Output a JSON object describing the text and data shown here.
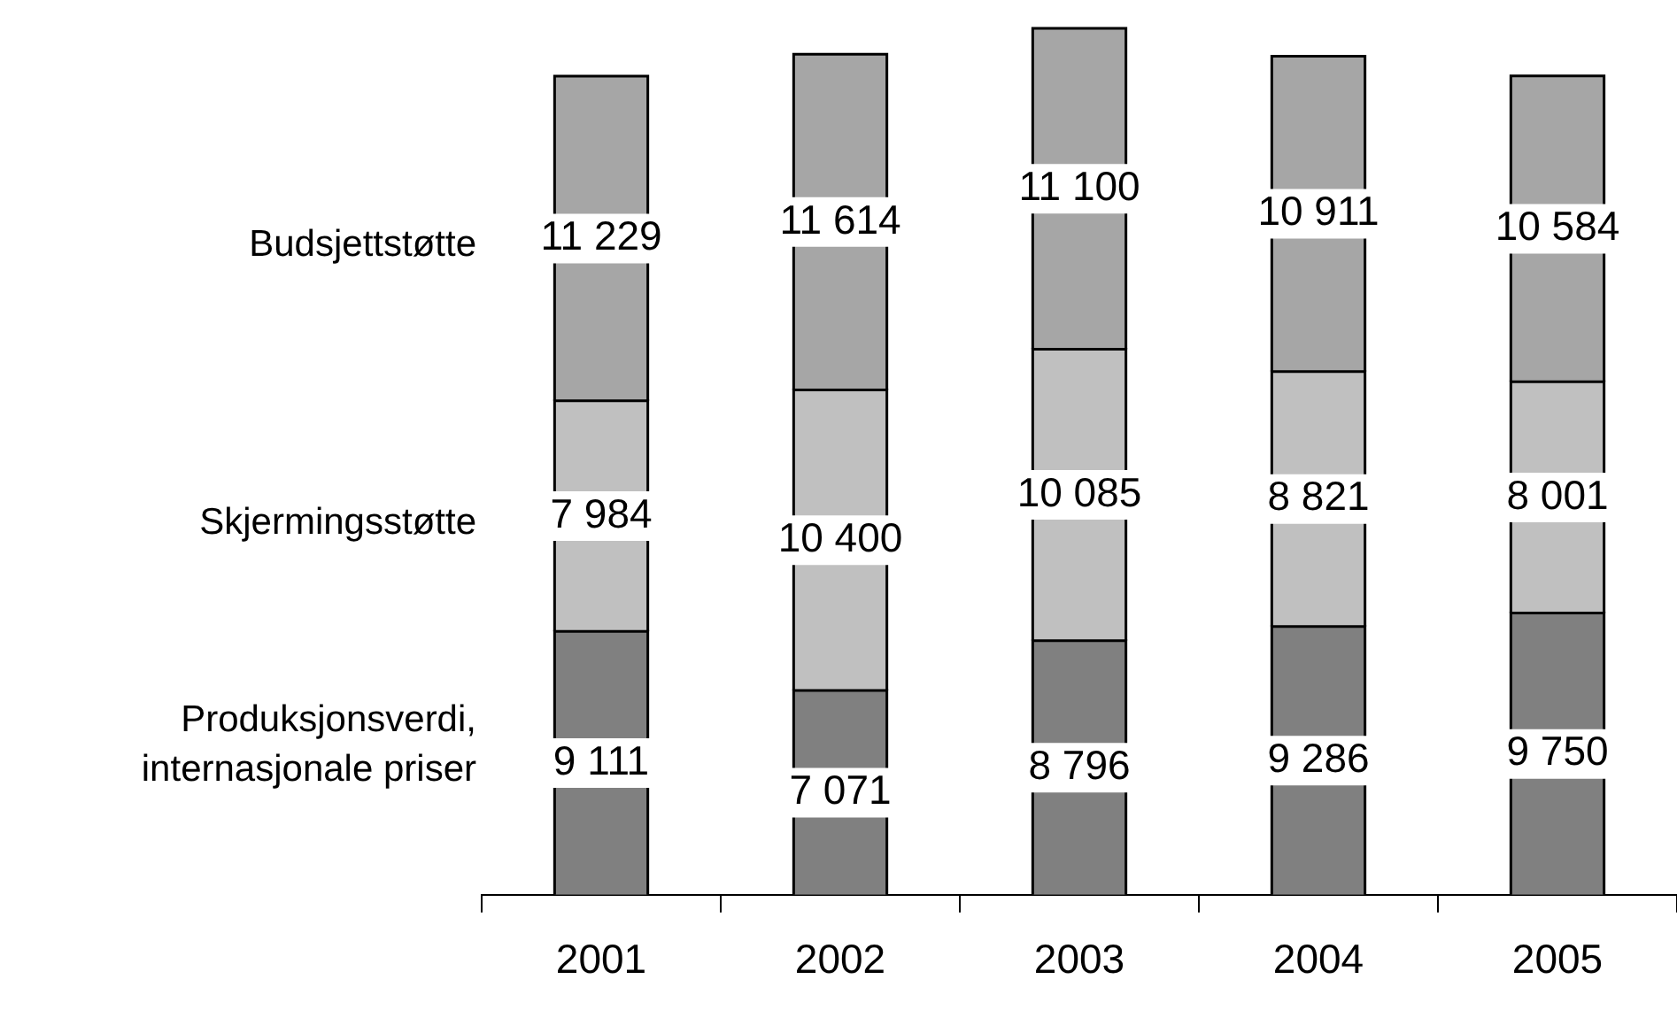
{
  "chart_data": {
    "type": "bar",
    "stacked": true,
    "categories": [
      "2001",
      "2002",
      "2003",
      "2004",
      "2005"
    ],
    "data_labels": true,
    "legend": false,
    "series": [
      {
        "name": "Produksjonsverdi, internasjonale priser",
        "color": "#808080",
        "values": [
          9111,
          7071,
          8796,
          9286,
          9750
        ]
      },
      {
        "name": "Skjermingsstøtte",
        "color": "#c0c0c0",
        "values": [
          7984,
          10400,
          10085,
          8821,
          8001
        ]
      },
      {
        "name": "Budsjettstøtte",
        "color": "#a6a6a6",
        "values": [
          11229,
          11614,
          11100,
          10911,
          10584
        ]
      }
    ]
  }
}
